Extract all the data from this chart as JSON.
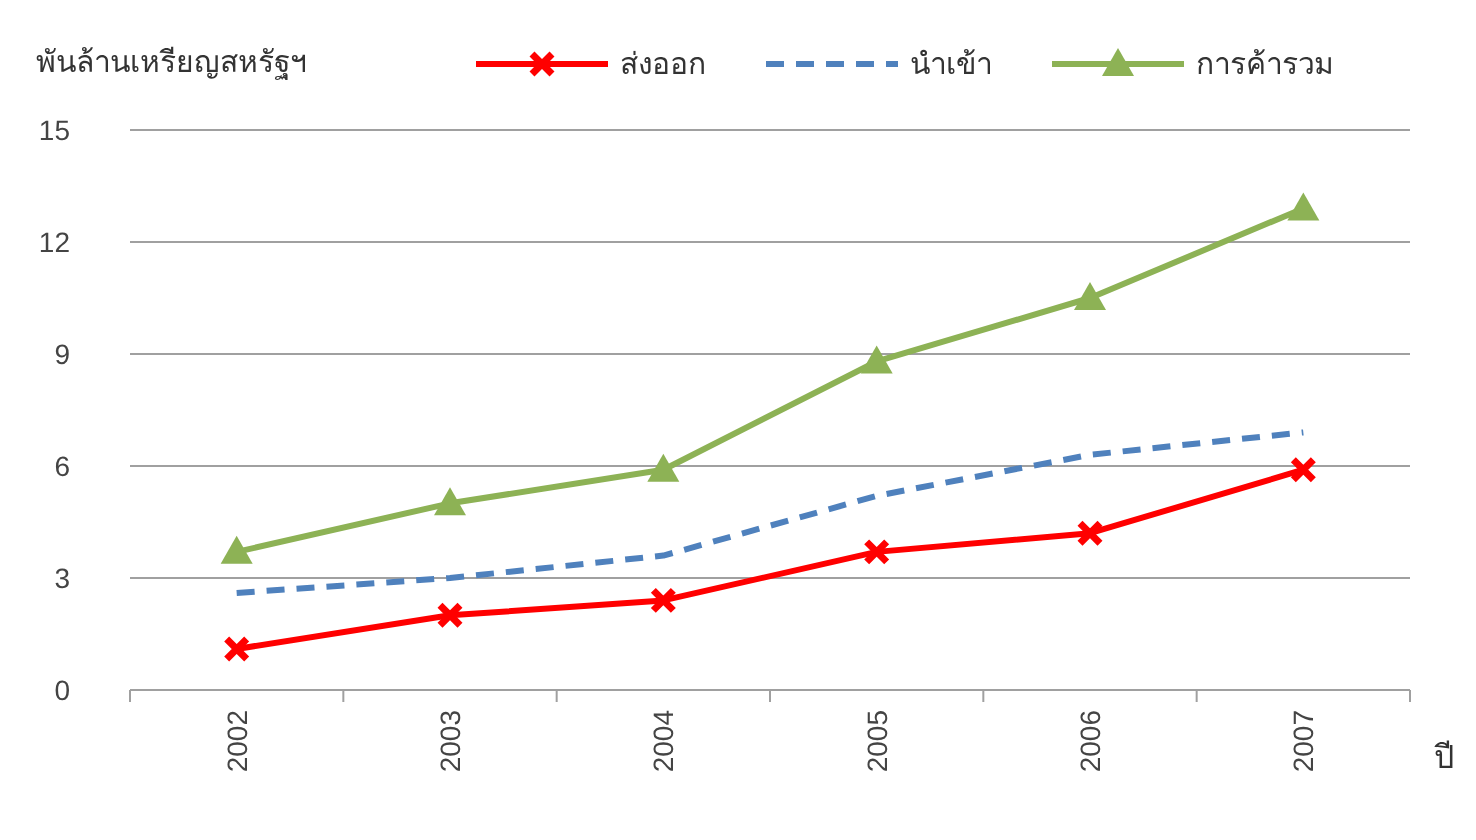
{
  "chart_data": {
    "type": "line",
    "ylabel": "พันล้านเหรียญสหรัฐฯ",
    "xlabel": "ปี",
    "categories": [
      "2002",
      "2003",
      "2004",
      "2005",
      "2006",
      "2007"
    ],
    "series": [
      {
        "name": "ส่งออก",
        "color": "#ff0000",
        "marker": "cross",
        "line_style": "solid",
        "values": [
          1.1,
          2.0,
          2.4,
          3.7,
          4.2,
          5.9
        ]
      },
      {
        "name": "นำเข้า",
        "color": "#4f81bd",
        "marker": "none",
        "line_style": "dashed",
        "values": [
          2.6,
          3.0,
          3.6,
          5.2,
          6.3,
          6.9
        ]
      },
      {
        "name": "การค้ารวม",
        "color": "#8db255",
        "marker": "triangle",
        "line_style": "solid",
        "values": [
          3.7,
          5.0,
          5.9,
          8.8,
          10.5,
          12.9
        ]
      }
    ],
    "ylim": [
      0,
      15
    ],
    "yticks": [
      0,
      3,
      6,
      9,
      12,
      15
    ],
    "grid": "y",
    "legend": "top"
  }
}
